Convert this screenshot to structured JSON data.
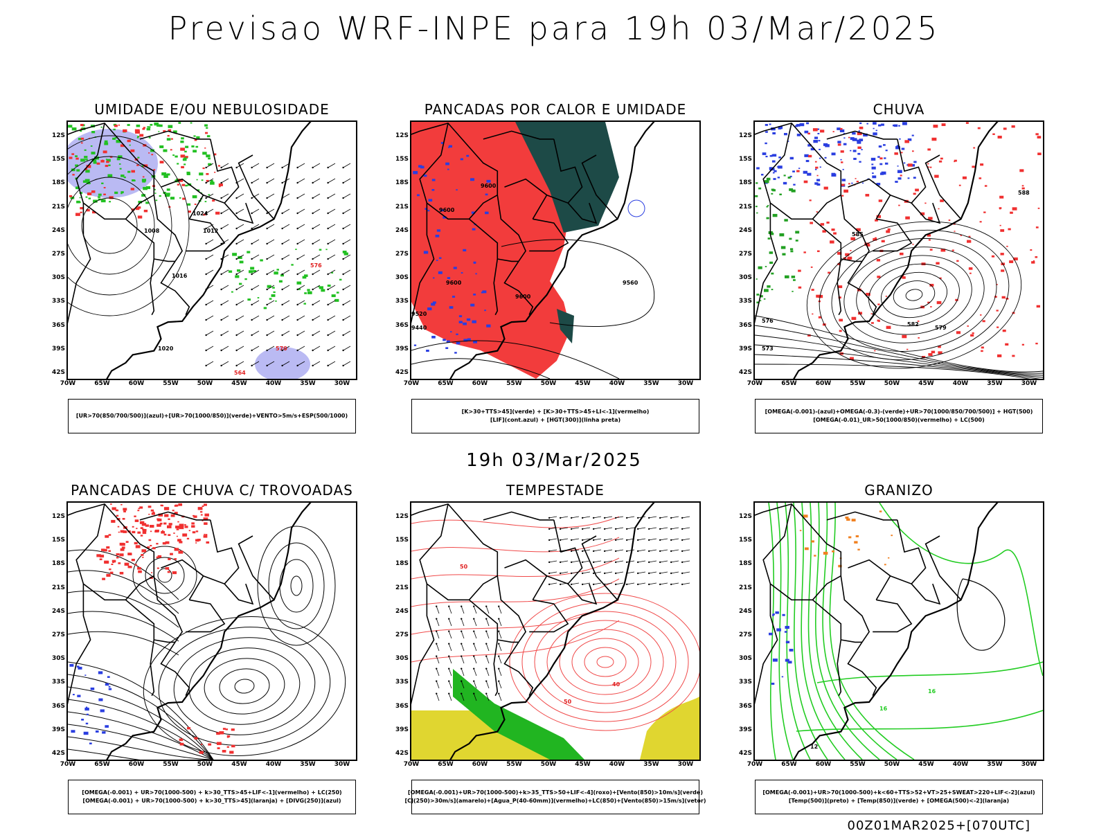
{
  "title": "Previsao WRF-INPE  para 19h 03/Mar/2025",
  "mid_title": "19h 03/Mar/2025",
  "footer": "00Z01MAR2025+[070UTC]",
  "lat_labels": [
    "12S",
    "15S",
    "18S",
    "21S",
    "24S",
    "27S",
    "30S",
    "33S",
    "36S",
    "39S",
    "42S"
  ],
  "lon_labels": [
    "70W",
    "65W",
    "60W",
    "55W",
    "50W",
    "45W",
    "40W",
    "35W",
    "30W"
  ],
  "panels": [
    {
      "title": "UMIDADE E/OU NEBULOSIDADE",
      "legend": [
        "[UR>70(850/700/500)](azul)+[UR>70(1000/850)](verde)+VENTO>5m/s+ESP(500/1000)"
      ],
      "contour_labels": [
        "1008",
        "1012",
        "1016",
        "1020",
        "1024",
        "576",
        "570",
        "564"
      ]
    },
    {
      "title": "PANCADAS POR CALOR E UMIDADE",
      "legend": [
        "[K>30+TTS>45](verde) + [K>30+TTS>45+LI<-1](vermelho)",
        "[LIF](cont.azul) + [HGT(300)](linha preta)"
      ],
      "contour_labels": [
        "9600",
        "9560",
        "9520",
        "9440"
      ]
    },
    {
      "title": "CHUVA",
      "legend": [
        "[OMEGA(-0.001)-(azul)+OMEGA(-0.3)-(verde)+UR>70(1000/850/700/500)] + HGT(500)",
        "[OMEGA(-0.01)_UR>50(1000/850)(vermelho) + LC(500)"
      ],
      "contour_labels": [
        "585",
        "582",
        "579",
        "576",
        "573",
        "588"
      ]
    },
    {
      "title": "PANCADAS DE CHUVA C/ TROVOADAS",
      "legend": [
        "[OMEGA(-0.001) + UR>70(1000-500) + k>30_TTS>45+LIF<-1](vermelho) + LC(250)",
        "[OMEGA(-0.001) + UR>70(1000-500) + k>30_TTS>45](laranja) + [DIVG(250)](azul)"
      ],
      "contour_labels": []
    },
    {
      "title": "TEMPESTADE",
      "legend": [
        "[OMEGA(-0.001)+UR>70(1000-500)+k>35_TTS>50+LIF<-4](roxo)+[Vento(850)>10m/s](verde)",
        "[CJ(250)>30m/s](amarelo)+[Agua_P(40-60mm)](vermelho)+LC(850)+[Vento(850)>15m/s](vetor)"
      ],
      "contour_labels": [
        "50",
        "40"
      ]
    },
    {
      "title": "GRANIZO",
      "legend": [
        "[OMEGA(-0.001)+UR>70(1000-500)+k<60+TTS>52+VT>25+SWEAT>220+LIF<-2](azul)",
        "[Temp(500)](preto) + [Temp(850)](verde) + [OMEGA(500)<-2](laranja)"
      ],
      "contour_labels": [
        "16",
        "12",
        "-12"
      ]
    }
  ],
  "chart_data": [
    {
      "type": "heatmap",
      "title": "UMIDADE E/OU NEBULOSIDADE",
      "x_range_deg": [
        -70,
        -30
      ],
      "y_range_deg": [
        -42,
        -10
      ],
      "fields": [
        "UR>70 (850/700/500) azul",
        "UR>70 (1000/850) verde",
        "Vento>5m/s vetores",
        "Espessura 500/1000 vermelho"
      ],
      "isobar_labels": [
        1008,
        1012,
        1016,
        1020,
        1024
      ],
      "thickness_labels": [
        564,
        570,
        576
      ]
    },
    {
      "type": "heatmap",
      "title": "PANCADAS POR CALOR E UMIDADE",
      "x_range_deg": [
        -70,
        -30
      ],
      "y_range_deg": [
        -42,
        -10
      ],
      "fields": [
        "K>30+TTS>45 verde",
        "K>30+TTS>45+LI<-1 vermelho",
        "LIF azul",
        "HGT(300) preto"
      ],
      "hgt300_labels": [
        9440,
        9520,
        9560,
        9600
      ]
    },
    {
      "type": "heatmap",
      "title": "CHUVA",
      "x_range_deg": [
        -70,
        -30
      ],
      "y_range_deg": [
        -42,
        -10
      ],
      "fields": [
        "OMEGA azul",
        "OMEGA verde",
        "OMEGA/UR vermelho",
        "HGT(500) preto"
      ],
      "hgt500_labels": [
        573,
        576,
        579,
        582,
        585,
        588
      ]
    },
    {
      "type": "heatmap",
      "title": "PANCADAS DE CHUVA C/ TROVOADAS",
      "x_range_deg": [
        -70,
        -30
      ],
      "y_range_deg": [
        -42,
        -10
      ],
      "fields": [
        "Trovoadas vermelho",
        "laranja",
        "DIVG(250) azul",
        "LC(250) linhas de corrente"
      ]
    },
    {
      "type": "heatmap",
      "title": "TEMPESTADE",
      "x_range_deg": [
        -70,
        -30
      ],
      "y_range_deg": [
        -42,
        -10
      ],
      "fields": [
        "roxo",
        "Vento(850)>10m/s verde",
        "CJ(250)>30m/s amarelo",
        "Agua_P(40-60mm) vermelho",
        "vetores"
      ],
      "pw_labels": [
        40,
        50
      ]
    },
    {
      "type": "heatmap",
      "title": "GRANIZO",
      "x_range_deg": [
        -70,
        -30
      ],
      "y_range_deg": [
        -42,
        -10
      ],
      "fields": [
        "azul",
        "Temp(500) preto",
        "Temp(850) verde",
        "OMEGA(500)<-2 laranja"
      ],
      "temp_labels": [
        -12,
        12,
        16
      ]
    }
  ]
}
